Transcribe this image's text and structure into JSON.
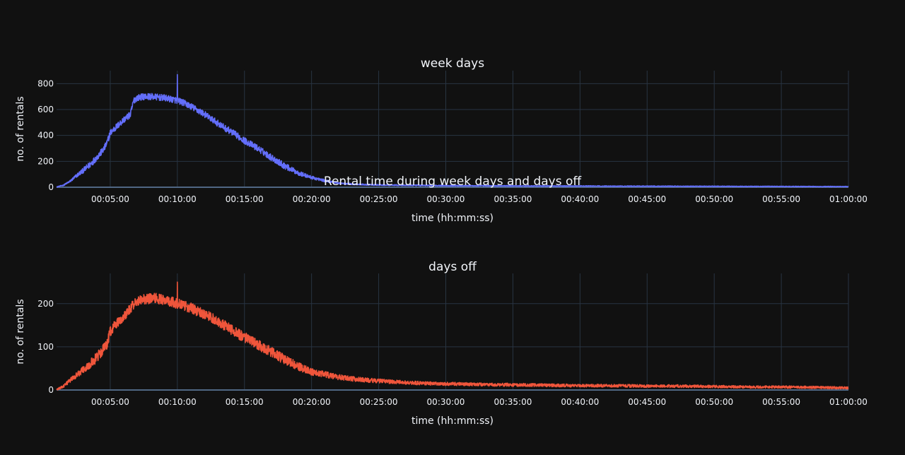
{
  "figure": {
    "title": "Rental time during week days and days off",
    "background": "#111111",
    "grid_color": "#283442",
    "text_color": "#f2f5fa"
  },
  "chart_data": [
    {
      "type": "line",
      "title": "week days",
      "xlabel": "time (hh:mm:ss)",
      "ylabel": "no. of rentals",
      "xlim": [
        60,
        3600
      ],
      "ylim": [
        0,
        900
      ],
      "xticks": [
        {
          "value": 300,
          "label": "00:05:00"
        },
        {
          "value": 600,
          "label": "00:10:00"
        },
        {
          "value": 900,
          "label": "00:15:00"
        },
        {
          "value": 1200,
          "label": "00:20:00"
        },
        {
          "value": 1500,
          "label": "00:25:00"
        },
        {
          "value": 1800,
          "label": "00:30:00"
        },
        {
          "value": 2100,
          "label": "00:35:00"
        },
        {
          "value": 2400,
          "label": "00:40:00"
        },
        {
          "value": 2700,
          "label": "00:45:00"
        },
        {
          "value": 3000,
          "label": "00:50:00"
        },
        {
          "value": 3300,
          "label": "00:55:00"
        },
        {
          "value": 3600,
          "label": "01:00:00"
        }
      ],
      "yticks": [
        {
          "value": 0,
          "label": "0"
        },
        {
          "value": 200,
          "label": "200"
        },
        {
          "value": 400,
          "label": "400"
        },
        {
          "value": 600,
          "label": "600"
        },
        {
          "value": 800,
          "label": "800"
        }
      ],
      "grid": true,
      "series": [
        {
          "color": "#636efa",
          "x": [
            60,
            90,
            120,
            150,
            180,
            210,
            240,
            270,
            285,
            300,
            330,
            360,
            390,
            405,
            420,
            450,
            480,
            510,
            540,
            570,
            600,
            630,
            660,
            690,
            720,
            750,
            780,
            810,
            840,
            870,
            900,
            960,
            1020,
            1080,
            1140,
            1200,
            1260,
            1320,
            1380,
            1440,
            1500,
            1560,
            1620,
            1680,
            1740,
            1800,
            1950,
            2100,
            2250,
            2400,
            2550,
            2700,
            2850,
            3000,
            3150,
            3300,
            3450,
            3600
          ],
          "y": [
            2,
            15,
            45,
            90,
            130,
            175,
            230,
            290,
            340,
            420,
            470,
            520,
            560,
            670,
            690,
            700,
            700,
            695,
            690,
            680,
            670,
            650,
            625,
            595,
            565,
            530,
            495,
            460,
            430,
            395,
            360,
            300,
            230,
            165,
            110,
            75,
            50,
            32,
            24,
            20,
            17,
            16,
            15,
            14,
            13,
            12,
            11,
            10,
            9,
            9,
            8,
            8,
            7,
            7,
            6,
            6,
            5,
            5
          ],
          "noise": 25,
          "peak": {
            "x": 600,
            "y": 870
          }
        }
      ]
    },
    {
      "type": "line",
      "title": "days off",
      "xlabel": "time (hh:mm:ss)",
      "ylabel": "no. of rentals",
      "xlim": [
        60,
        3600
      ],
      "ylim": [
        0,
        270
      ],
      "xticks": [
        {
          "value": 300,
          "label": "00:05:00"
        },
        {
          "value": 600,
          "label": "00:10:00"
        },
        {
          "value": 900,
          "label": "00:15:00"
        },
        {
          "value": 1200,
          "label": "00:20:00"
        },
        {
          "value": 1500,
          "label": "00:25:00"
        },
        {
          "value": 1800,
          "label": "00:30:00"
        },
        {
          "value": 2100,
          "label": "00:35:00"
        },
        {
          "value": 2400,
          "label": "00:40:00"
        },
        {
          "value": 2700,
          "label": "00:45:00"
        },
        {
          "value": 3000,
          "label": "00:50:00"
        },
        {
          "value": 3300,
          "label": "00:55:00"
        },
        {
          "value": 3600,
          "label": "01:00:00"
        }
      ],
      "yticks": [
        {
          "value": 0,
          "label": "0"
        },
        {
          "value": 100,
          "label": "100"
        },
        {
          "value": 200,
          "label": "200"
        }
      ],
      "grid": true,
      "series": [
        {
          "color": "#ef553b",
          "x": [
            60,
            90,
            120,
            150,
            180,
            210,
            240,
            270,
            285,
            300,
            330,
            360,
            390,
            420,
            450,
            480,
            510,
            540,
            570,
            600,
            630,
            660,
            690,
            720,
            750,
            780,
            810,
            840,
            870,
            900,
            960,
            1020,
            1080,
            1140,
            1200,
            1260,
            1320,
            1380,
            1440,
            1500,
            1560,
            1620,
            1680,
            1740,
            1800,
            1950,
            2100,
            2250,
            2400,
            2550,
            2700,
            2850,
            3000,
            3150,
            3300,
            3450,
            3600
          ],
          "y": [
            1,
            8,
            22,
            35,
            48,
            60,
            75,
            95,
            105,
            135,
            155,
            170,
            190,
            205,
            210,
            212,
            212,
            208,
            205,
            200,
            196,
            190,
            183,
            176,
            168,
            160,
            150,
            140,
            130,
            122,
            105,
            88,
            70,
            55,
            42,
            36,
            30,
            26,
            23,
            21,
            19,
            17,
            16,
            15,
            14,
            13,
            12,
            11,
            10,
            10,
            9,
            9,
            8,
            7,
            7,
            6,
            5
          ],
          "noise": 12,
          "peak": {
            "x": 600,
            "y": 250
          }
        }
      ]
    }
  ]
}
